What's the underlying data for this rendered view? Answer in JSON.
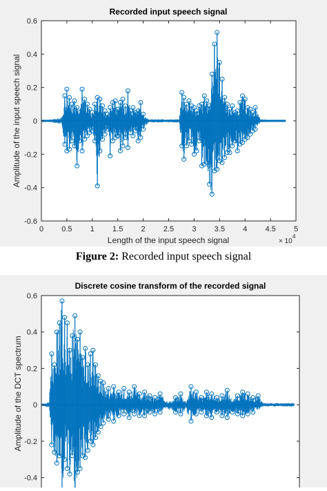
{
  "chart_data": [
    {
      "type": "line",
      "title": "Recorded input speech signal",
      "xlabel": "Length of the input speech signal",
      "ylabel": "Amplitude of the input speech signal",
      "x_exponent_label": "× 10",
      "x_exponent_power": "4",
      "xlim": [
        0,
        50000
      ],
      "ylim": [
        -0.6,
        0.6
      ],
      "x_ticks": [
        0,
        5000,
        10000,
        15000,
        20000,
        25000,
        30000,
        35000,
        40000,
        45000,
        50000
      ],
      "x_tick_labels": [
        "0",
        "0.5",
        "1",
        "1.5",
        "2",
        "2.5",
        "3",
        "3.5",
        "4",
        "4.5",
        "5"
      ],
      "y_ticks": [
        -0.6,
        -0.4,
        -0.2,
        0,
        0.2,
        0.4,
        0.6
      ],
      "y_tick_labels": [
        "-0.6",
        "-0.4",
        "-0.2",
        "0",
        "0.2",
        "0.4",
        "0.6"
      ],
      "series": [
        {
          "color": "#0072bd",
          "marker": "circle",
          "x": [
            0,
            4000,
            4600,
            5000,
            5500,
            6000,
            6500,
            7000,
            7500,
            8000,
            8500,
            9000,
            9500,
            10000,
            10500,
            11000,
            11500,
            12000,
            12500,
            13000,
            13500,
            14000,
            14500,
            15000,
            15500,
            16000,
            16500,
            17000,
            17500,
            18000,
            18500,
            19000,
            19500,
            20000,
            21000,
            27000,
            27600,
            28000,
            28500,
            29000,
            29500,
            30000,
            30500,
            31000,
            31500,
            32000,
            32500,
            33000,
            33500,
            34000,
            34500,
            35000,
            35500,
            36000,
            36500,
            37000,
            37500,
            38000,
            38500,
            39000,
            39500,
            40000,
            40500,
            41000,
            41500,
            42000,
            43000,
            48000
          ],
          "upper": [
            0,
            0.02,
            0.15,
            0.19,
            0.14,
            0.1,
            0.12,
            0.08,
            0.05,
            0.19,
            0.13,
            0.1,
            0.07,
            0.05,
            0.1,
            0.14,
            0.13,
            0.09,
            0.06,
            0.04,
            0.08,
            0.11,
            0.12,
            0.07,
            0.11,
            0.13,
            0.09,
            0.18,
            0.06,
            0.08,
            0.05,
            0.06,
            0.11,
            0.04,
            0.01,
            0.01,
            0.17,
            0.14,
            0.1,
            0.12,
            0.09,
            0.08,
            0.06,
            0.09,
            0.1,
            0.15,
            0.12,
            0.09,
            0.28,
            0.46,
            0.53,
            0.35,
            0.25,
            0.14,
            0.1,
            0.07,
            0.09,
            0.05,
            0.06,
            0.11,
            0.15,
            0.13,
            0.08,
            0.07,
            0.05,
            0.08,
            0.01,
            0
          ],
          "lower": [
            0,
            -0.02,
            -0.14,
            -0.18,
            -0.17,
            -0.12,
            -0.15,
            -0.27,
            -0.12,
            -0.18,
            -0.11,
            -0.09,
            -0.07,
            -0.06,
            -0.12,
            -0.39,
            -0.18,
            -0.11,
            -0.08,
            -0.05,
            -0.21,
            -0.12,
            -0.1,
            -0.09,
            -0.18,
            -0.15,
            -0.1,
            -0.16,
            -0.07,
            -0.09,
            -0.06,
            -0.12,
            -0.1,
            -0.05,
            -0.01,
            -0.01,
            -0.15,
            -0.23,
            -0.15,
            -0.12,
            -0.14,
            -0.2,
            -0.18,
            -0.12,
            -0.27,
            -0.26,
            -0.25,
            -0.38,
            -0.44,
            -0.3,
            -0.29,
            -0.24,
            -0.25,
            -0.22,
            -0.19,
            -0.19,
            -0.15,
            -0.12,
            -0.18,
            -0.14,
            -0.13,
            -0.11,
            -0.1,
            -0.08,
            -0.06,
            -0.05,
            -0.01,
            0
          ]
        }
      ]
    },
    {
      "type": "line",
      "title": "Discrete cosine transform of the recorded signal",
      "xlabel": "",
      "ylabel": "Amplitude of the DCT spectrum",
      "xlim": [
        0,
        50000
      ],
      "ylim": [
        -0.5,
        0.6
      ],
      "y_ticks": [
        -0.4,
        -0.2,
        0,
        0.2,
        0.4,
        0.6
      ],
      "y_tick_labels": [
        "-0.4",
        "-0.2",
        "0",
        "0.2",
        "0.4",
        "0.6"
      ],
      "series": [
        {
          "color": "#0072bd",
          "marker": "circle",
          "x": [
            0,
            1500,
            2000,
            2500,
            3000,
            3500,
            4000,
            4500,
            5000,
            5500,
            6000,
            6500,
            7000,
            7500,
            8000,
            8500,
            9000,
            9500,
            10000,
            10500,
            11000,
            11500,
            12000,
            13000,
            14000,
            15000,
            16000,
            17000,
            18000,
            19000,
            20000,
            21000,
            22000,
            23000,
            24000,
            25000,
            26000,
            27000,
            28000,
            29000,
            30000,
            31000,
            32000,
            33000,
            34000,
            35000,
            36000,
            37000,
            38000,
            39000,
            40000,
            41000,
            42000,
            43000,
            45000,
            49000
          ],
          "upper": [
            0,
            0.02,
            0.28,
            0.22,
            0.4,
            0.45,
            0.57,
            0.48,
            0.45,
            0.3,
            0.38,
            0.49,
            0.36,
            0.4,
            0.26,
            0.31,
            0.22,
            0.28,
            0.3,
            0.22,
            0.16,
            0.13,
            0.12,
            0.09,
            0.1,
            0.07,
            0.09,
            0.07,
            0.1,
            0.06,
            0.07,
            0.05,
            0.04,
            0.06,
            0.03,
            0.02,
            0.04,
            0.06,
            0.02,
            0.1,
            0.07,
            0.04,
            0.07,
            0.06,
            0.04,
            0.05,
            0.08,
            0.03,
            0.05,
            0.07,
            0.06,
            0.04,
            0.05,
            0.01,
            0.01,
            0.01
          ],
          "lower": [
            0,
            -0.02,
            -0.22,
            -0.26,
            -0.32,
            -0.28,
            -0.48,
            -0.3,
            -0.35,
            -0.38,
            -0.28,
            -0.53,
            -0.37,
            -0.35,
            -0.28,
            -0.29,
            -0.25,
            -0.2,
            -0.22,
            -0.18,
            -0.15,
            -0.12,
            -0.1,
            -0.08,
            -0.09,
            -0.06,
            -0.05,
            -0.07,
            -0.05,
            -0.06,
            -0.06,
            -0.04,
            -0.05,
            -0.04,
            -0.03,
            -0.03,
            -0.04,
            -0.05,
            -0.03,
            -0.09,
            -0.05,
            -0.04,
            -0.06,
            -0.07,
            -0.04,
            -0.06,
            -0.07,
            -0.04,
            -0.05,
            -0.06,
            -0.05,
            -0.04,
            -0.03,
            -0.01,
            -0.01,
            -0.01
          ]
        }
      ]
    }
  ],
  "caption": {
    "label": "Figure 2:",
    "text": " Recorded input speech signal"
  }
}
